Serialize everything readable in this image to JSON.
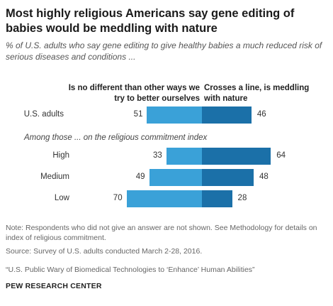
{
  "header": {
    "title": "Most highly religious Americans say gene editing of babies would be meddling with nature",
    "subtitle": "% of U.S. adults who say gene editing to give healthy babies a much reduced risk of serious diseases and conditions ..."
  },
  "colors": {
    "left": "#3aa1d8",
    "right": "#1b70a8"
  },
  "chart_data": {
    "type": "bar",
    "orientation": "horizontal-diverging",
    "series": [
      {
        "name": "Is no different than other ways we try to better ourselves",
        "values": [
          51,
          33,
          49,
          70
        ]
      },
      {
        "name": "Crosses a line, is meddling with nature",
        "values": [
          46,
          64,
          48,
          28
        ]
      }
    ],
    "categories": [
      "U.S. adults",
      "High",
      "Medium",
      "Low"
    ],
    "group_label": "Among those ... on the religious commitment index",
    "xlim": [
      0,
      100
    ]
  },
  "notes": {
    "note": "Note: Respondents who did not give an answer are not shown. See Methodology for details on index of religious commitment.",
    "source": "Source: Survey of U.S. adults conducted March 2-28, 2016.",
    "report": "“U.S. Public Wary of Biomedical Technologies to ‘Enhance’ Human Abilities”",
    "footer": "PEW RESEARCH CENTER"
  }
}
